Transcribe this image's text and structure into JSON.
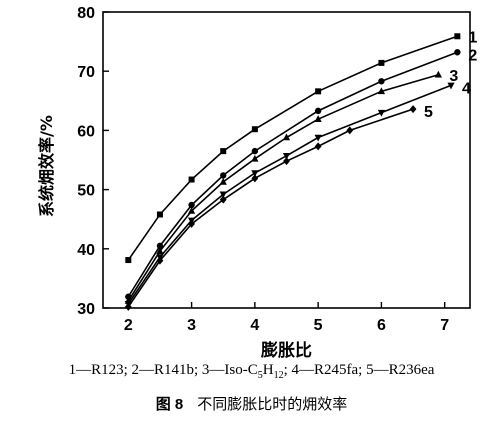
{
  "chart_data": {
    "type": "line",
    "xlabel": "膨胀比",
    "ylabel": "系统㶲效率/%",
    "xlim": [
      1.6,
      7.4
    ],
    "ylim": [
      30,
      80
    ],
    "xticks": [
      2,
      3,
      4,
      5,
      6,
      7
    ],
    "yticks": [
      30,
      40,
      50,
      60,
      70,
      80
    ],
    "grid": false,
    "series": [
      {
        "name": "1",
        "marker": "square",
        "x": [
          2.0,
          2.5,
          3.0,
          3.5,
          4.0,
          5.0,
          6.0,
          7.2
        ],
        "y": [
          38.1,
          45.8,
          51.7,
          56.5,
          60.2,
          66.6,
          71.4,
          75.9
        ]
      },
      {
        "name": "2",
        "marker": "circle",
        "x": [
          2.0,
          2.5,
          3.0,
          3.5,
          4.0,
          5.0,
          6.0,
          7.2
        ],
        "y": [
          31.9,
          40.5,
          47.4,
          52.4,
          56.5,
          63.3,
          68.3,
          73.2
        ]
      },
      {
        "name": "3",
        "marker": "triangle-up",
        "x": [
          2.0,
          2.5,
          3.0,
          3.5,
          4.0,
          4.5,
          5.0,
          6.0,
          6.9
        ],
        "y": [
          31.2,
          39.6,
          46.4,
          51.3,
          55.2,
          58.8,
          61.9,
          66.6,
          69.4
        ]
      },
      {
        "name": "4",
        "marker": "triangle-down",
        "x": [
          2.0,
          2.5,
          3.0,
          3.5,
          4.0,
          4.5,
          5.0,
          6.0,
          7.1
        ],
        "y": [
          30.7,
          38.6,
          44.8,
          49.2,
          52.8,
          55.7,
          58.8,
          63.0,
          67.6
        ]
      },
      {
        "name": "5",
        "marker": "diamond",
        "x": [
          2.0,
          2.5,
          3.0,
          3.5,
          4.0,
          4.5,
          5.0,
          5.5,
          6.5
        ],
        "y": [
          30.2,
          38.0,
          44.2,
          48.3,
          51.9,
          54.8,
          57.3,
          60.0,
          63.6
        ]
      }
    ]
  },
  "legend_parts": [
    "1—R123; 2—R141b; 3—Iso-C",
    "5",
    "H",
    "12",
    "; 4—R245fa; 5—R236ea"
  ],
  "caption": {
    "figure_no": "图 8",
    "text": "不同膨胀比时的㶲效率"
  }
}
